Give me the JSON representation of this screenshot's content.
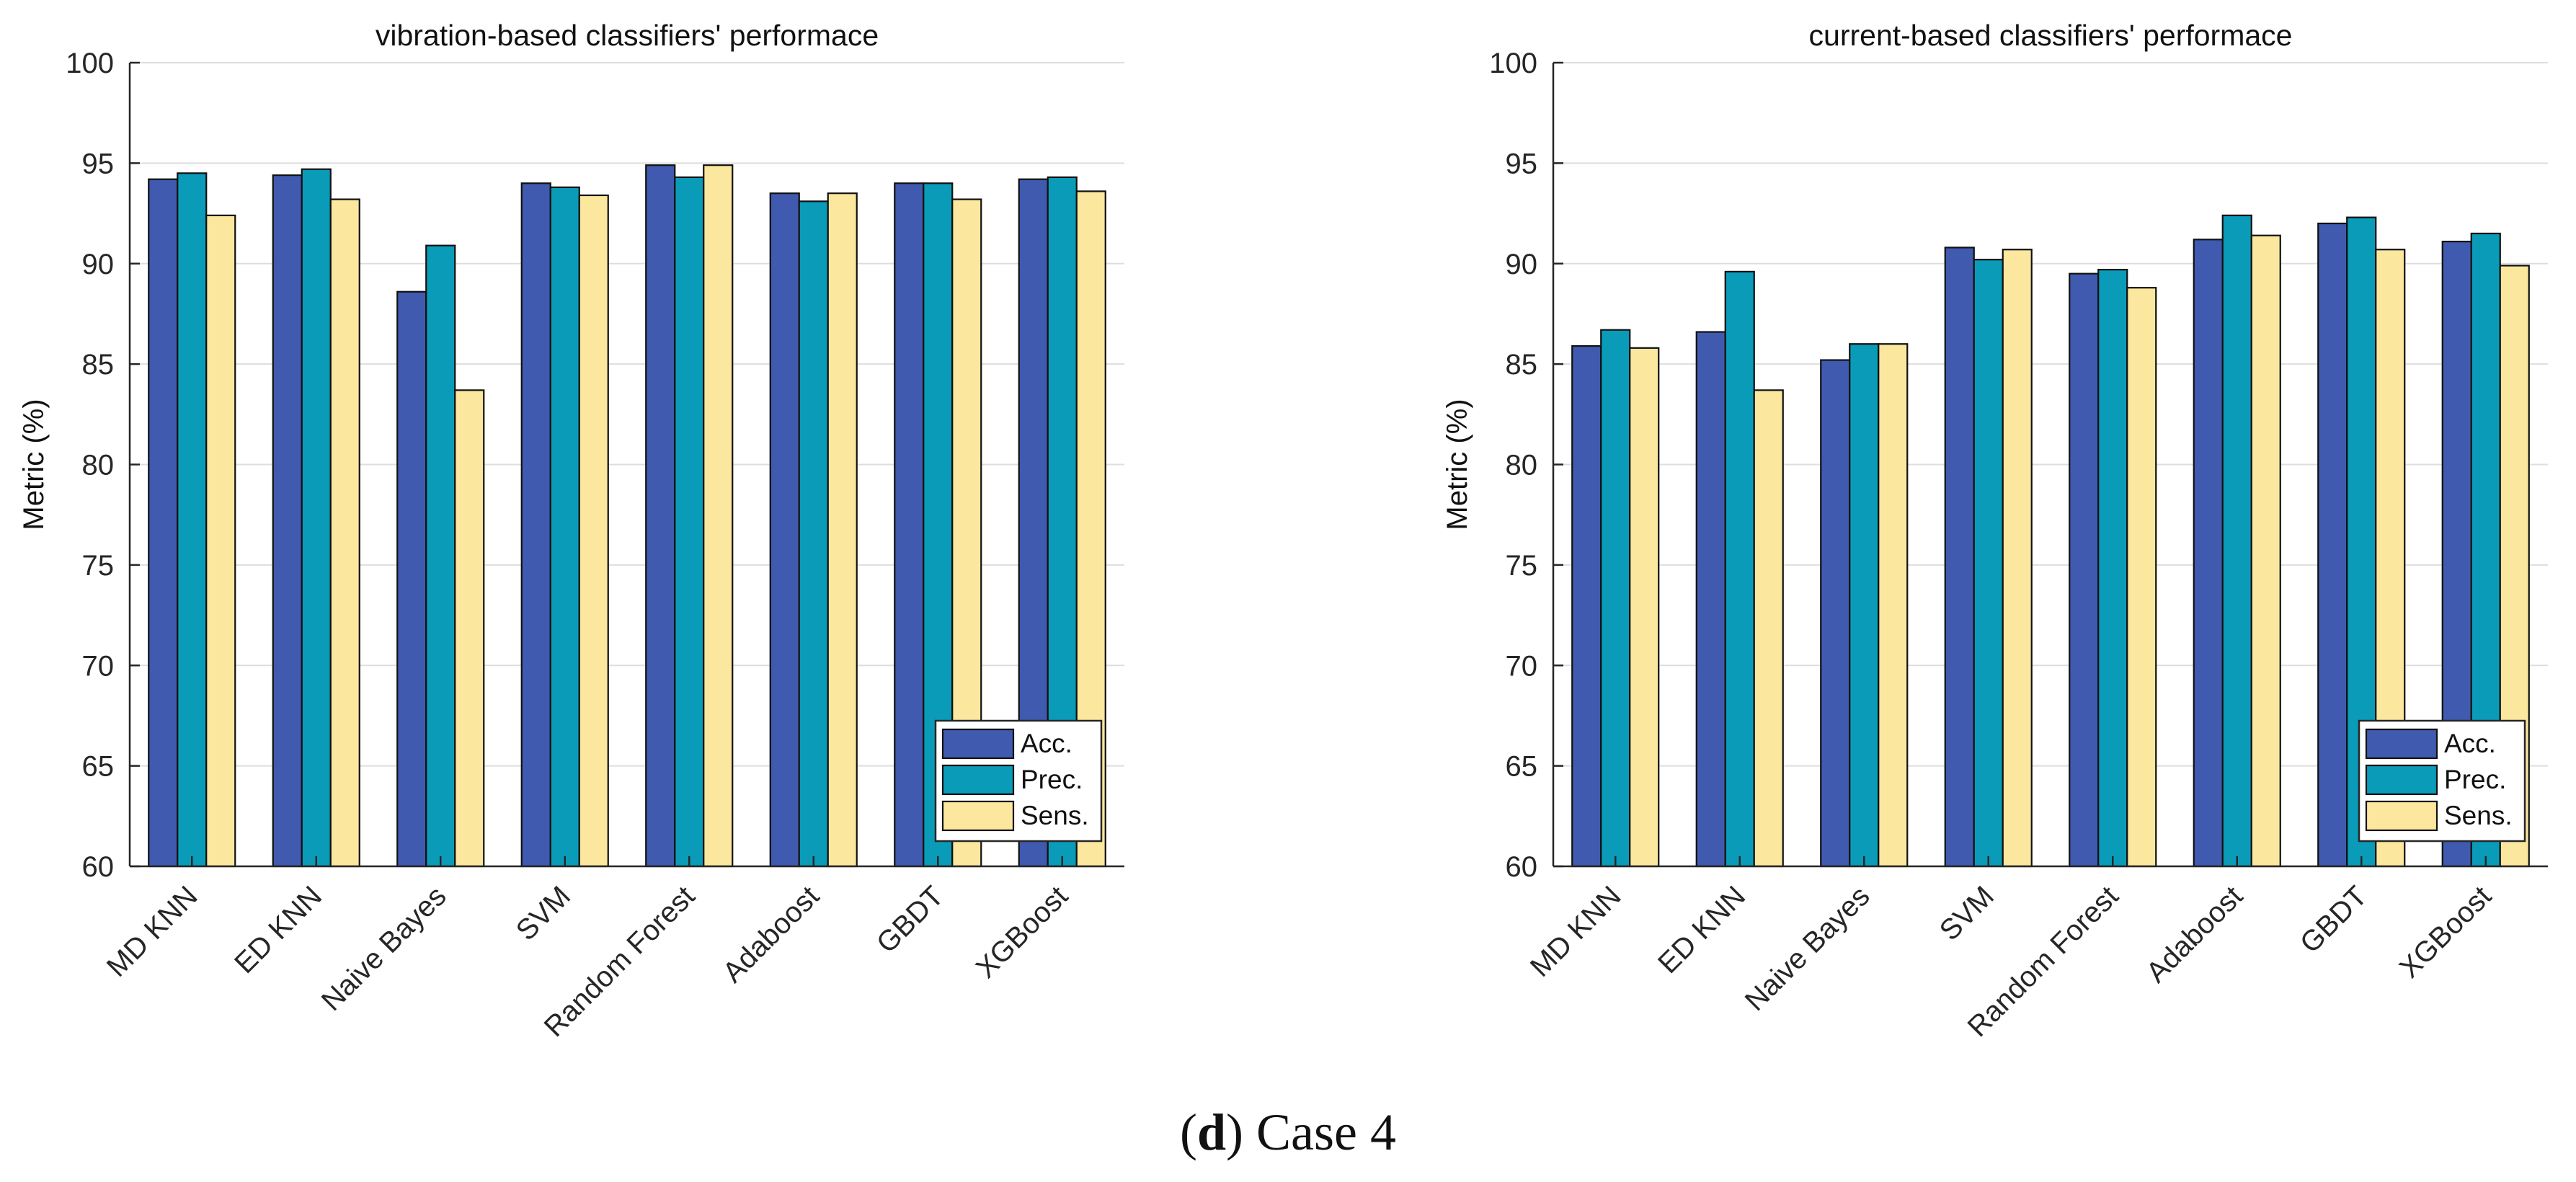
{
  "chart_data": [
    {
      "type": "bar",
      "title": "vibration-based classifiers' performace",
      "ylabel": "Metric (%)",
      "xlabel": "",
      "ylim": [
        60,
        100
      ],
      "yticks": [
        60,
        65,
        70,
        75,
        80,
        85,
        90,
        95,
        100
      ],
      "grid": "horizontal",
      "legend": "bottom-right",
      "categories": [
        "MD KNN",
        "ED KNN",
        "Naive Bayes",
        "SVM",
        "Random Forest",
        "Adaboost",
        "GBDT",
        "XGBoost"
      ],
      "series": [
        {
          "name": "Acc.",
          "color": "#3F5AAE",
          "values": [
            94.2,
            94.4,
            88.6,
            94.0,
            94.9,
            93.5,
            94.0,
            94.2
          ]
        },
        {
          "name": "Prec.",
          "color": "#0A9BB8",
          "values": [
            94.5,
            94.7,
            90.9,
            93.8,
            94.3,
            93.1,
            94.0,
            94.3
          ]
        },
        {
          "name": "Sens.",
          "color": "#FCE79F",
          "values": [
            92.4,
            93.2,
            83.7,
            93.4,
            94.9,
            93.5,
            93.2,
            93.6
          ]
        }
      ]
    },
    {
      "type": "bar",
      "title": "current-based classifiers' performace",
      "ylabel": "Metric (%)",
      "xlabel": "",
      "ylim": [
        60,
        100
      ],
      "yticks": [
        60,
        65,
        70,
        75,
        80,
        85,
        90,
        95,
        100
      ],
      "grid": "horizontal",
      "legend": "bottom-right",
      "categories": [
        "MD KNN",
        "ED KNN",
        "Naive Bayes",
        "SVM",
        "Random Forest",
        "Adaboost",
        "GBDT",
        "XGBoost"
      ],
      "series": [
        {
          "name": "Acc.",
          "color": "#3F5AAE",
          "values": [
            85.9,
            86.6,
            85.2,
            90.8,
            89.5,
            91.2,
            92.0,
            91.1
          ]
        },
        {
          "name": "Prec.",
          "color": "#0A9BB8",
          "values": [
            86.7,
            89.6,
            86.0,
            90.2,
            89.7,
            92.4,
            92.3,
            91.5
          ]
        },
        {
          "name": "Sens.",
          "color": "#FCE79F",
          "values": [
            85.8,
            83.7,
            86.0,
            90.7,
            88.8,
            91.4,
            90.7,
            89.9
          ]
        }
      ]
    }
  ],
  "caption": {
    "letter": "d",
    "text": " Case 4"
  }
}
